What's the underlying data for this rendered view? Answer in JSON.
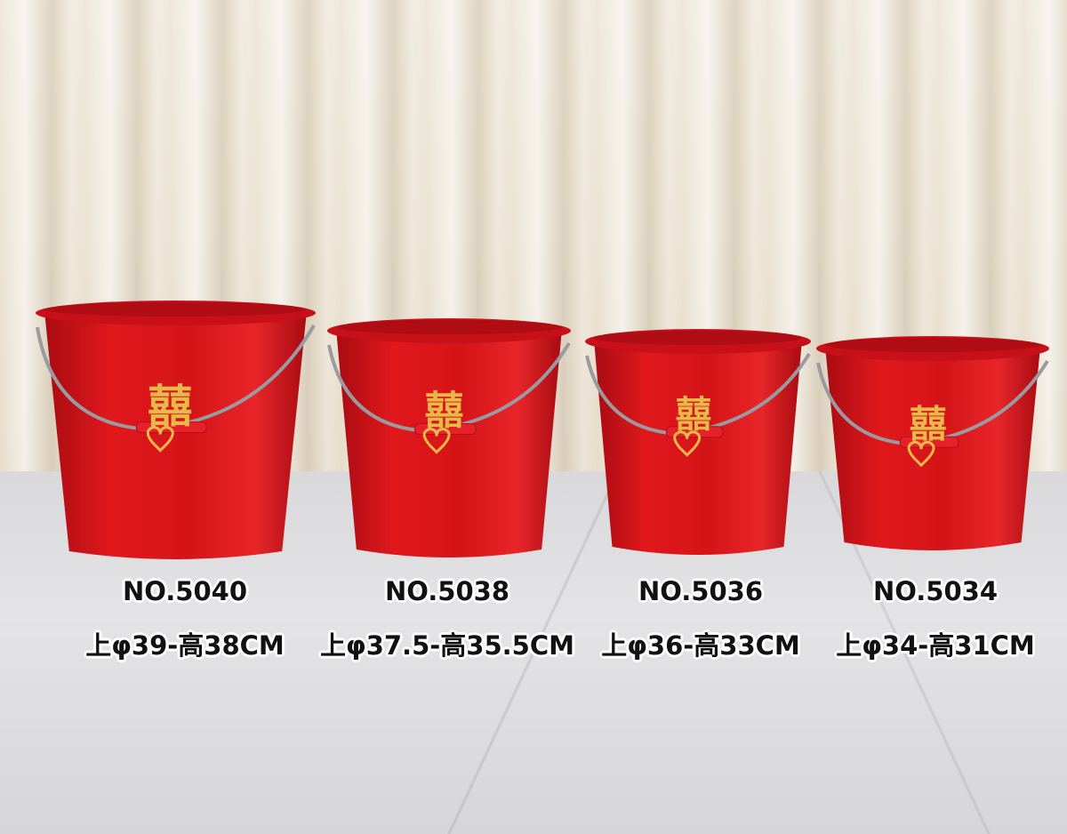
{
  "colors": {
    "bucket": "#d81418",
    "rim": "#c8101a",
    "emblem": "#e8b84a",
    "curtain": "#ede5d6",
    "floor": "#dcdbde"
  },
  "emblem": "囍",
  "products": [
    {
      "model": "NO.5040",
      "dims": "上φ39-高38CM"
    },
    {
      "model": "NO.5038",
      "dims": "上φ37.5-高35.5CM"
    },
    {
      "model": "NO.5036",
      "dims": "上φ36-高33CM"
    },
    {
      "model": "NO.5034",
      "dims": "上φ34-高31CM"
    }
  ]
}
